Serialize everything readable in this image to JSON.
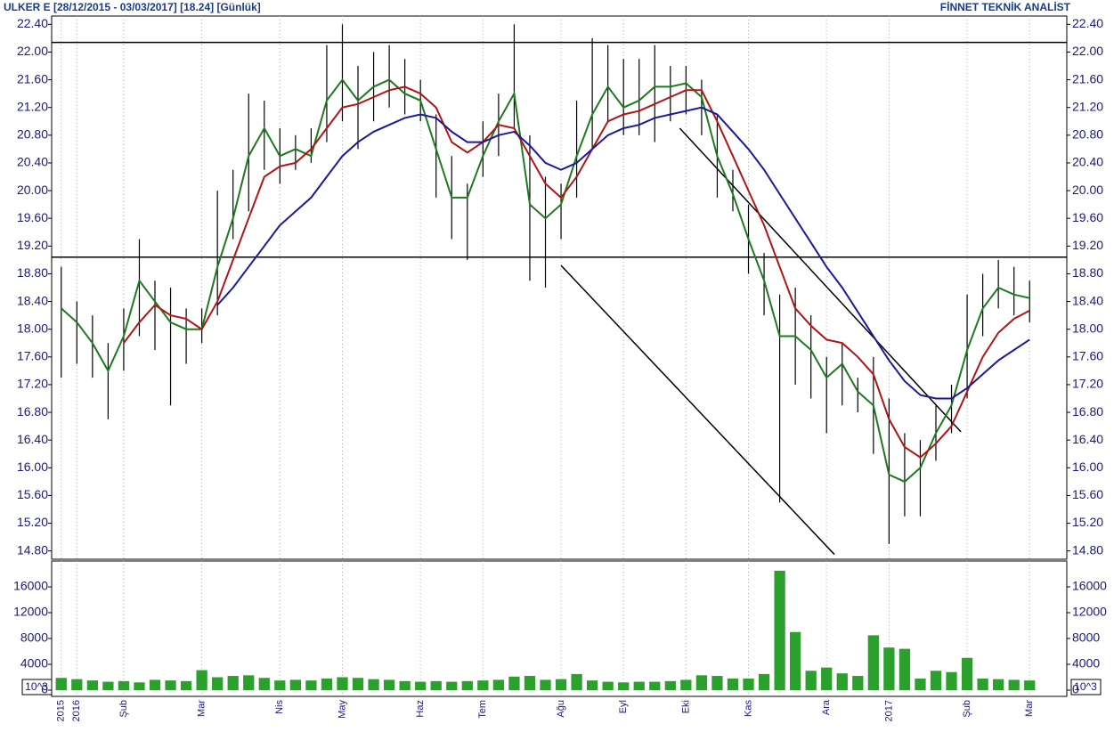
{
  "title": "ULKER E  [28/12/2015 - 03/03/2017]  [18.24]  [Günlük]",
  "brand": "FİNNET TEKNİK ANALİST",
  "chart_data": [
    {
      "type": "ohlc",
      "categories": [
        "2015",
        "2016",
        null,
        null,
        "Şub",
        null,
        null,
        null,
        null,
        "Mar",
        null,
        null,
        null,
        null,
        "Nis",
        null,
        null,
        null,
        "May",
        null,
        null,
        null,
        null,
        "Haz",
        null,
        null,
        null,
        "Tem",
        null,
        null,
        null,
        null,
        "Ağu",
        null,
        null,
        null,
        "Eyl",
        null,
        null,
        null,
        "Eki",
        null,
        null,
        null,
        "Kas",
        null,
        null,
        null,
        null,
        "Ara",
        null,
        null,
        null,
        "2017",
        null,
        null,
        null,
        null,
        "Şub",
        null,
        null,
        null,
        "Mar"
      ],
      "high": [
        18.9,
        18.4,
        18.2,
        17.8,
        18.3,
        19.3,
        18.7,
        18.6,
        18.3,
        18.3,
        20.0,
        20.3,
        21.4,
        21.3,
        20.9,
        20.8,
        20.9,
        22.1,
        22.4,
        21.8,
        22.0,
        22.1,
        21.9,
        21.6,
        21.1,
        20.5,
        20.1,
        21.0,
        21.4,
        22.4,
        20.8,
        20.2,
        20.1,
        21.3,
        22.2,
        22.1,
        21.9,
        21.9,
        22.1,
        21.8,
        21.8,
        21.6,
        21.1,
        20.3,
        19.8,
        19.1,
        18.5,
        18.6,
        18.2,
        17.6,
        17.8,
        17.3,
        17.6,
        17.0,
        16.5,
        16.4,
        16.9,
        17.2,
        18.5,
        18.8,
        19.0,
        18.9,
        18.7
      ],
      "low": [
        17.3,
        17.5,
        17.3,
        16.7,
        17.4,
        17.9,
        17.7,
        16.9,
        17.5,
        17.8,
        18.2,
        19.3,
        19.7,
        20.3,
        20.1,
        20.3,
        20.4,
        20.7,
        21.0,
        20.6,
        21.0,
        21.2,
        21.1,
        21.0,
        19.9,
        19.3,
        19.0,
        20.2,
        20.5,
        20.9,
        18.7,
        18.6,
        19.3,
        19.9,
        20.6,
        21.0,
        20.8,
        20.8,
        20.7,
        21.0,
        21.1,
        20.8,
        19.9,
        19.7,
        18.8,
        18.2,
        15.5,
        17.2,
        17.0,
        16.5,
        16.9,
        16.8,
        16.2,
        14.9,
        15.3,
        15.3,
        16.1,
        16.5,
        17.0,
        17.9,
        18.3,
        18.2,
        18.1
      ],
      "bar_color": "#000000",
      "lines": [
        {
          "color": "#1e7a1e",
          "values": [
            18.3,
            18.1,
            17.8,
            17.4,
            17.9,
            18.7,
            18.4,
            18.1,
            18.0,
            18.0,
            18.9,
            19.6,
            20.5,
            20.9,
            20.5,
            20.6,
            20.5,
            21.3,
            21.6,
            21.3,
            21.5,
            21.6,
            21.4,
            21.3,
            20.6,
            19.9,
            19.9,
            20.5,
            21.0,
            21.4,
            19.8,
            19.6,
            19.8,
            20.5,
            21.1,
            21.5,
            21.2,
            21.3,
            21.5,
            21.5,
            21.55,
            21.35,
            20.5,
            19.95,
            19.3,
            18.7,
            17.9,
            17.9,
            17.7,
            17.3,
            17.5,
            17.1,
            16.9,
            15.9,
            15.8,
            16.0,
            16.5,
            16.9,
            17.7,
            18.3,
            18.6,
            18.5,
            18.45
          ]
        },
        {
          "color": "#b01515",
          "values": [
            null,
            null,
            null,
            null,
            17.8,
            18.1,
            18.35,
            18.2,
            18.15,
            18.0,
            18.4,
            19.0,
            19.6,
            20.2,
            20.35,
            20.4,
            20.6,
            20.9,
            21.2,
            21.25,
            21.35,
            21.45,
            21.5,
            21.4,
            21.2,
            20.7,
            20.55,
            20.7,
            20.95,
            20.9,
            20.5,
            20.1,
            19.9,
            20.2,
            20.6,
            21.0,
            21.1,
            21.15,
            21.25,
            21.35,
            21.45,
            21.45,
            21.0,
            20.5,
            20.0,
            19.5,
            18.9,
            18.3,
            18.05,
            17.85,
            17.8,
            17.6,
            17.35,
            16.7,
            16.3,
            16.15,
            16.35,
            16.6,
            17.1,
            17.6,
            17.95,
            18.15,
            18.27
          ]
        },
        {
          "color": "#1a1a9a",
          "values": [
            null,
            null,
            null,
            null,
            null,
            null,
            null,
            null,
            null,
            null,
            18.35,
            18.6,
            18.9,
            19.2,
            19.5,
            19.7,
            19.9,
            20.2,
            20.5,
            20.7,
            20.85,
            20.95,
            21.05,
            21.1,
            21.05,
            20.85,
            20.7,
            20.7,
            20.8,
            20.85,
            20.65,
            20.4,
            20.3,
            20.4,
            20.6,
            20.8,
            20.9,
            20.95,
            21.05,
            21.1,
            21.15,
            21.2,
            21.1,
            20.85,
            20.6,
            20.3,
            19.95,
            19.6,
            19.25,
            18.9,
            18.6,
            18.25,
            17.9,
            17.55,
            17.25,
            17.05,
            17.0,
            17.0,
            17.15,
            17.35,
            17.55,
            17.7,
            17.85
          ]
        }
      ],
      "hlines": [
        22.14,
        19.04
      ],
      "trendlines": [
        {
          "from": [
            32,
            18.92
          ],
          "to": [
            49.5,
            14.75
          ]
        },
        {
          "from": [
            39.6,
            20.9
          ],
          "to": [
            57.6,
            16.52
          ]
        }
      ],
      "ylim": [
        14.68,
        22.52
      ],
      "yticks": [
        {
          "value": 14.8,
          "label": "14.80"
        },
        {
          "value": 15.2,
          "label": "15.20"
        },
        {
          "value": 15.6,
          "label": "15.60"
        },
        {
          "value": 16.0,
          "label": "16.00"
        },
        {
          "value": 16.4,
          "label": "16.40"
        },
        {
          "value": 16.8,
          "label": "16.80"
        },
        {
          "value": 17.2,
          "label": "17.20"
        },
        {
          "value": 17.6,
          "label": "17.60"
        },
        {
          "value": 18.0,
          "label": "18.00"
        },
        {
          "value": 18.4,
          "label": "18.40"
        },
        {
          "value": 18.8,
          "label": "18.80"
        },
        {
          "value": 19.2,
          "label": "19.20"
        },
        {
          "value": 19.6,
          "label": "19.60"
        },
        {
          "value": 20.0,
          "label": "20.00"
        },
        {
          "value": 20.4,
          "label": "20.40"
        },
        {
          "value": 20.8,
          "label": "20.80"
        },
        {
          "value": 21.2,
          "label": "21.20"
        },
        {
          "value": 21.6,
          "label": "21.60"
        },
        {
          "value": 22.0,
          "label": "22.00"
        },
        {
          "value": 22.4,
          "label": "22.40"
        }
      ]
    },
    {
      "type": "bar",
      "unit": "10^3",
      "color": "#2ca02c",
      "values": [
        1900,
        1700,
        1500,
        1300,
        1400,
        1200,
        1600,
        1500,
        1400,
        3100,
        2000,
        2200,
        2300,
        1900,
        1500,
        1600,
        1500,
        1800,
        2000,
        1900,
        1700,
        1600,
        1400,
        1300,
        1400,
        1300,
        1400,
        1500,
        1600,
        2100,
        2200,
        1600,
        1700,
        2500,
        1500,
        1300,
        1200,
        1300,
        1300,
        1400,
        1600,
        2300,
        2200,
        1800,
        1800,
        2500,
        18500,
        9000,
        3000,
        3500,
        2600,
        2200,
        8500,
        6600,
        6400,
        1800,
        3000,
        2800,
        5000,
        1800,
        1700,
        1600,
        1500
      ],
      "ylim": [
        0,
        20000
      ],
      "yticks": [
        0,
        4000,
        8000,
        12000,
        16000
      ]
    }
  ]
}
